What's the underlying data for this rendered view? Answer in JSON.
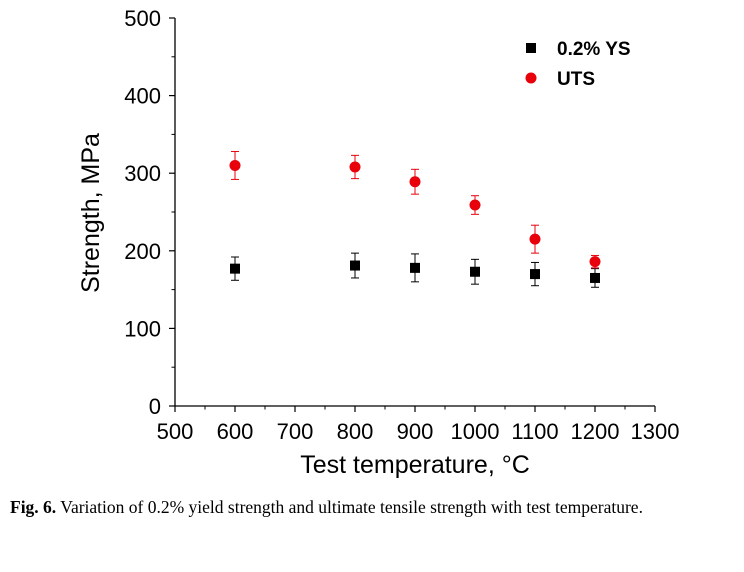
{
  "chart_data": {
    "type": "scatter",
    "title": "",
    "xlabel": "Test temperature, °C",
    "ylabel": "Strength, MPa",
    "xlim": [
      500,
      1300
    ],
    "ylim": [
      0,
      500
    ],
    "xticks": [
      500,
      600,
      700,
      800,
      900,
      1000,
      1100,
      1200,
      1300
    ],
    "yticks": [
      0,
      100,
      200,
      300,
      400,
      500
    ],
    "grid": false,
    "legend": "top-right",
    "series": [
      {
        "name": "0.2% YS",
        "marker": "square",
        "color": "#000000",
        "x": [
          600,
          800,
          900,
          1000,
          1100,
          1200
        ],
        "y": [
          177,
          181,
          178,
          173,
          170,
          165
        ],
        "err": [
          15,
          16,
          18,
          16,
          15,
          12
        ]
      },
      {
        "name": "UTS",
        "marker": "circle",
        "color": "#e8000b",
        "x": [
          600,
          800,
          900,
          1000,
          1100,
          1200
        ],
        "y": [
          310,
          308,
          289,
          259,
          215,
          186
        ],
        "err": [
          18,
          15,
          16,
          12,
          18,
          8
        ]
      }
    ]
  },
  "caption": {
    "label": "Fig. 6.",
    "text": " Variation of 0.2% yield strength and ultimate tensile strength with test temperature."
  }
}
